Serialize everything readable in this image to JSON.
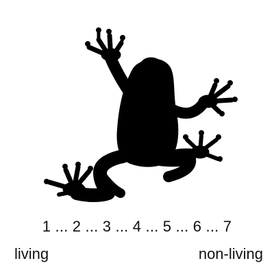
{
  "figure": {
    "icon": "frog-silhouette-icon",
    "color": "#000000"
  },
  "scale": {
    "text": "1 ... 2 ... 3 ... 4 ... 5 ... 6 ... 7",
    "left_label": "living",
    "right_label": "non-living"
  }
}
